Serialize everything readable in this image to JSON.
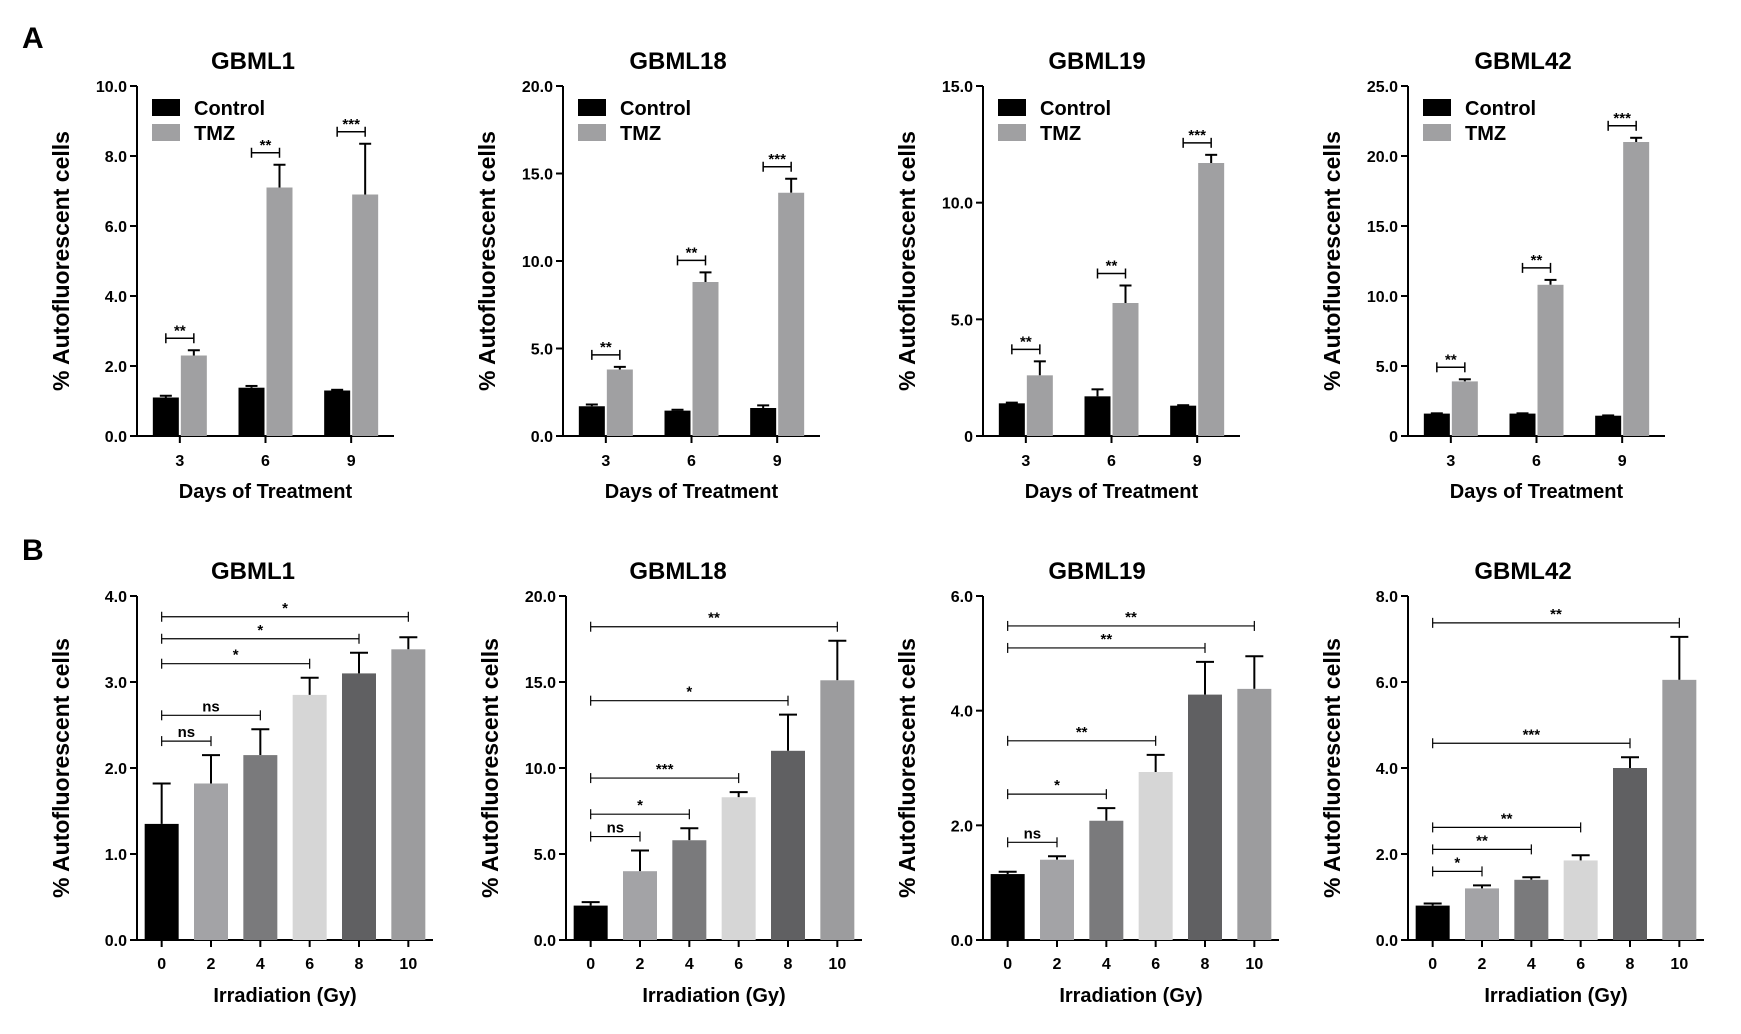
{
  "figure": {
    "panel_labels": [
      "A",
      "B"
    ]
  },
  "chart_data": [
    {
      "type": "bar",
      "panel": "A",
      "title": "GBML1",
      "xlabel": "Days of Treatment",
      "ylabel": "% Autofluorescent cells",
      "categories": [
        "3",
        "6",
        "9"
      ],
      "ylim": [
        0,
        10
      ],
      "yticks": [
        "0.0",
        "2.0",
        "4.0",
        "6.0",
        "8.0",
        "10.0"
      ],
      "legend": [
        "Control",
        "TMZ"
      ],
      "legend_position": "top-left",
      "series": [
        {
          "name": "Control",
          "color": "#000000",
          "values": [
            1.1,
            1.38,
            1.3
          ],
          "errors": [
            0.05,
            0.05,
            0.02
          ]
        },
        {
          "name": "TMZ",
          "color": "#a0a0a2",
          "values": [
            2.3,
            7.1,
            6.9
          ],
          "errors": [
            0.15,
            0.65,
            1.45
          ]
        }
      ],
      "significance": [
        {
          "category": 0,
          "label": "**"
        },
        {
          "category": 1,
          "label": "**"
        },
        {
          "category": 2,
          "label": "***"
        }
      ]
    },
    {
      "type": "bar",
      "panel": "A",
      "title": "GBML18",
      "xlabel": "Days of Treatment",
      "ylabel": "% Autofluorescent cells",
      "categories": [
        "3",
        "6",
        "9"
      ],
      "ylim": [
        0,
        20
      ],
      "yticks": [
        "0.0",
        "5.0",
        "10.0",
        "15.0",
        "20.0"
      ],
      "legend": [
        "Control",
        "TMZ"
      ],
      "legend_position": "top-left",
      "series": [
        {
          "name": "Control",
          "color": "#000000",
          "values": [
            1.7,
            1.45,
            1.6
          ],
          "errors": [
            0.1,
            0.05,
            0.15
          ]
        },
        {
          "name": "TMZ",
          "color": "#a0a0a2",
          "values": [
            3.8,
            8.8,
            13.9
          ],
          "errors": [
            0.15,
            0.55,
            0.8
          ]
        }
      ],
      "significance": [
        {
          "category": 0,
          "label": "**"
        },
        {
          "category": 1,
          "label": "**"
        },
        {
          "category": 2,
          "label": "***"
        }
      ]
    },
    {
      "type": "bar",
      "panel": "A",
      "title": "GBML19",
      "xlabel": "Days of Treatment",
      "ylabel": "% Autofluorescent cells",
      "categories": [
        "3",
        "6",
        "9"
      ],
      "ylim": [
        0,
        15
      ],
      "yticks": [
        "0",
        "5.0",
        "10.0",
        "15.0"
      ],
      "legend": [
        "Control",
        "TMZ"
      ],
      "legend_position": "top-left",
      "series": [
        {
          "name": "Control",
          "color": "#000000",
          "values": [
            1.4,
            1.7,
            1.3
          ],
          "errors": [
            0.03,
            0.3,
            0.02
          ]
        },
        {
          "name": "TMZ",
          "color": "#a0a0a2",
          "values": [
            2.6,
            5.7,
            11.7
          ],
          "errors": [
            0.6,
            0.75,
            0.35
          ]
        }
      ],
      "significance": [
        {
          "category": 0,
          "label": "**"
        },
        {
          "category": 1,
          "label": "**"
        },
        {
          "category": 2,
          "label": "***"
        }
      ]
    },
    {
      "type": "bar",
      "panel": "A",
      "title": "GBML42",
      "xlabel": "Days of Treatment",
      "ylabel": "% Autofluorescent cells",
      "categories": [
        "3",
        "6",
        "9"
      ],
      "ylim": [
        0,
        25
      ],
      "yticks": [
        "0",
        "5.0",
        "10.0",
        "15.0",
        "20.0",
        "25.0"
      ],
      "legend": [
        "Control",
        "TMZ"
      ],
      "legend_position": "top-left",
      "series": [
        {
          "name": "Control",
          "color": "#000000",
          "values": [
            1.6,
            1.6,
            1.45
          ],
          "errors": [
            0.02,
            0.02,
            0.02
          ]
        },
        {
          "name": "TMZ",
          "color": "#a0a0a2",
          "values": [
            3.9,
            10.8,
            21.0
          ],
          "errors": [
            0.15,
            0.35,
            0.3
          ]
        }
      ],
      "significance": [
        {
          "category": 0,
          "label": "**"
        },
        {
          "category": 1,
          "label": "**"
        },
        {
          "category": 2,
          "label": "***"
        }
      ]
    },
    {
      "type": "bar",
      "panel": "B",
      "title": "GBML1",
      "xlabel": "Irradiation (Gy)",
      "ylabel": "% Autofluorescent cells",
      "categories": [
        "0",
        "2",
        "4",
        "6",
        "8",
        "10"
      ],
      "ylim": [
        0,
        4
      ],
      "yticks": [
        "0.0",
        "1.0",
        "2.0",
        "3.0",
        "4.0"
      ],
      "bar_colors": [
        "#000000",
        "#a3a3a6",
        "#7a7a7c",
        "#d6d6d6",
        "#606062",
        "#9c9c9e"
      ],
      "values": [
        1.35,
        1.82,
        2.15,
        2.85,
        3.1,
        3.38
      ],
      "errors": [
        0.47,
        0.33,
        0.3,
        0.2,
        0.24,
        0.14
      ],
      "significance": [
        {
          "from": 0,
          "to": 1,
          "label": "ns"
        },
        {
          "from": 0,
          "to": 2,
          "label": "ns"
        },
        {
          "from": 0,
          "to": 3,
          "label": "*"
        },
        {
          "from": 0,
          "to": 4,
          "label": "*"
        },
        {
          "from": 0,
          "to": 5,
          "label": "*"
        }
      ]
    },
    {
      "type": "bar",
      "panel": "B",
      "title": "GBML18",
      "xlabel": "Irradiation (Gy)",
      "ylabel": "% Autofluorescent cells",
      "categories": [
        "0",
        "2",
        "4",
        "6",
        "8",
        "10"
      ],
      "ylim": [
        0,
        20
      ],
      "yticks": [
        "0.0",
        "5.0",
        "10.0",
        "15.0",
        "20.0"
      ],
      "bar_colors": [
        "#000000",
        "#a3a3a6",
        "#7a7a7c",
        "#d6d6d6",
        "#606062",
        "#9c9c9e"
      ],
      "values": [
        2.0,
        4.0,
        5.8,
        8.3,
        11.0,
        15.1
      ],
      "errors": [
        0.2,
        1.2,
        0.7,
        0.3,
        2.1,
        2.3
      ],
      "significance": [
        {
          "from": 0,
          "to": 1,
          "label": "ns"
        },
        {
          "from": 0,
          "to": 2,
          "label": "*"
        },
        {
          "from": 0,
          "to": 3,
          "label": "***"
        },
        {
          "from": 0,
          "to": 4,
          "label": "*"
        },
        {
          "from": 0,
          "to": 5,
          "label": "**"
        }
      ]
    },
    {
      "type": "bar",
      "panel": "B",
      "title": "GBML19",
      "xlabel": "Irradiation (Gy)",
      "ylabel": "% Autofluorescent cells",
      "categories": [
        "0",
        "2",
        "4",
        "6",
        "8",
        "10"
      ],
      "ylim": [
        0,
        6
      ],
      "yticks": [
        "0.0",
        "2.0",
        "4.0",
        "6.0"
      ],
      "bar_colors": [
        "#000000",
        "#a3a3a6",
        "#7a7a7c",
        "#d6d6d6",
        "#606062",
        "#9c9c9e"
      ],
      "values": [
        1.15,
        1.4,
        2.08,
        2.93,
        4.28,
        4.38
      ],
      "errors": [
        0.04,
        0.06,
        0.22,
        0.3,
        0.57,
        0.57
      ],
      "significance": [
        {
          "from": 0,
          "to": 1,
          "label": "ns"
        },
        {
          "from": 0,
          "to": 2,
          "label": "*"
        },
        {
          "from": 0,
          "to": 3,
          "label": "**"
        },
        {
          "from": 0,
          "to": 4,
          "label": "**"
        },
        {
          "from": 0,
          "to": 5,
          "label": "**"
        }
      ]
    },
    {
      "type": "bar",
      "panel": "B",
      "title": "GBML42",
      "xlabel": "Irradiation (Gy)",
      "ylabel": "% Autofluorescent cells",
      "categories": [
        "0",
        "2",
        "4",
        "6",
        "8",
        "10"
      ],
      "ylim": [
        0,
        8
      ],
      "yticks": [
        "0.0",
        "2.0",
        "4.0",
        "6.0",
        "8.0"
      ],
      "bar_colors": [
        "#000000",
        "#a3a3a6",
        "#7a7a7c",
        "#d6d6d6",
        "#606062",
        "#9c9c9e"
      ],
      "values": [
        0.8,
        1.2,
        1.4,
        1.85,
        4.0,
        6.05
      ],
      "errors": [
        0.05,
        0.07,
        0.06,
        0.12,
        0.25,
        1.0
      ],
      "significance": [
        {
          "from": 0,
          "to": 1,
          "label": "*"
        },
        {
          "from": 0,
          "to": 2,
          "label": "**"
        },
        {
          "from": 0,
          "to": 3,
          "label": "**"
        },
        {
          "from": 0,
          "to": 4,
          "label": "***"
        },
        {
          "from": 0,
          "to": 5,
          "label": "**"
        }
      ]
    }
  ]
}
